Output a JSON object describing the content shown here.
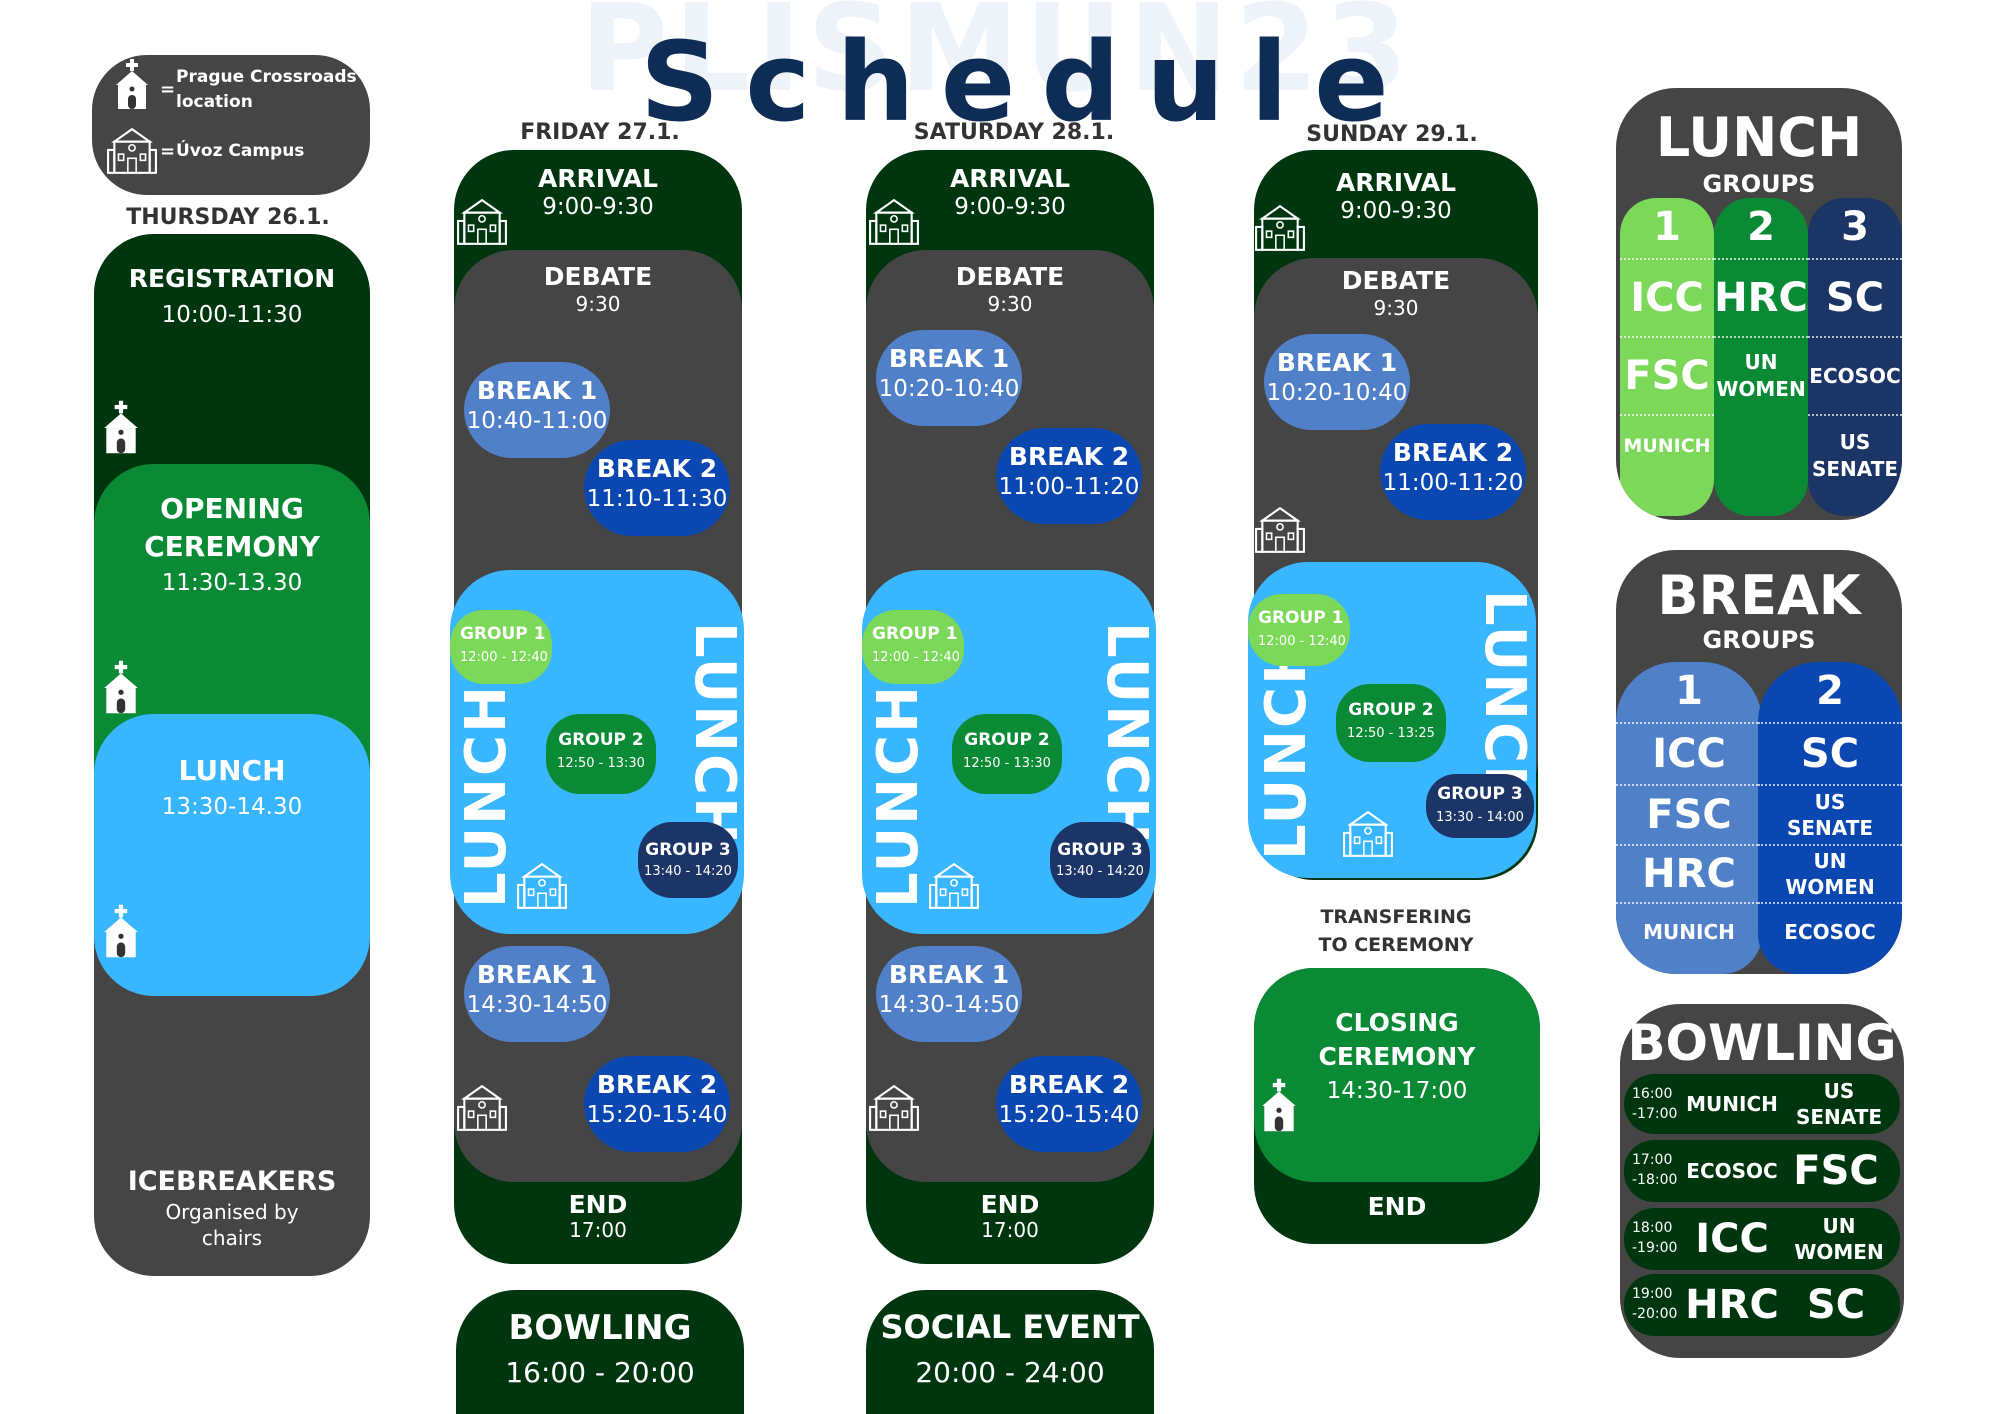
{
  "title": "Schedule",
  "watermark": "PLISMUN23",
  "colors": {
    "dark_green": "#00360f",
    "green": "#0a8a35",
    "light_green": "#7bd858",
    "gray": "#454545",
    "light_blue": "#38b6ff",
    "mid_blue": "#5080c8",
    "blue": "#0a47b0",
    "navy": "#1b3566",
    "title_navy": "#0d2d57"
  },
  "legend": {
    "church_label": "Prague Crossroads location",
    "school_label": "Úvoz Campus",
    "eq": "="
  },
  "thursday": {
    "day": "THURSDAY 26.1.",
    "registration": "REGISTRATION",
    "registration_time": "10:00-11:30",
    "opening_1": "OPENING",
    "opening_2": "CEREMONY",
    "opening_time": "11:30-13.30",
    "lunch": "LUNCH",
    "lunch_time": "13:30-14.30",
    "icebreakers": "ICEBREAKERS",
    "ice_sub_1": "Organised by",
    "ice_sub_2": "chairs"
  },
  "friday": {
    "day": "FRIDAY 27.1.",
    "arrival": "ARRIVAL",
    "arrival_time": "9:00-9:30",
    "debate": "DEBATE",
    "debate_time": "9:30",
    "break1": "BREAK 1",
    "break1_time": "10:40-11:00",
    "break2": "BREAK 2",
    "break2_time": "11:10-11:30",
    "lunch": "LUNCH",
    "g1": "GROUP 1",
    "g1_time": "12:00 - 12:40",
    "g2": "GROUP 2",
    "g2_time": "12:50 - 13:30",
    "g3": "GROUP 3",
    "g3_time": "13:40 - 14:20",
    "break1b": "BREAK 1",
    "break1b_time": "14:30-14:50",
    "break2b": "BREAK 2",
    "break2b_time": "15:20-15:40",
    "end": "END",
    "end_time": "17:00",
    "evening": "BOWLING",
    "evening_time": "16:00 - 20:00"
  },
  "saturday": {
    "day": "SATURDAY 28.1.",
    "arrival": "ARRIVAL",
    "arrival_time": "9:00-9:30",
    "debate": "DEBATE",
    "debate_time": "9:30",
    "break1": "BREAK 1",
    "break1_time": "10:20-10:40",
    "break2": "BREAK 2",
    "break2_time": "11:00-11:20",
    "lunch": "LUNCH",
    "g1": "GROUP 1",
    "g1_time": "12:00 - 12:40",
    "g2": "GROUP 2",
    "g2_time": "12:50 - 13:30",
    "g3": "GROUP 3",
    "g3_time": "13:40 - 14:20",
    "break1b": "BREAK 1",
    "break1b_time": "14:30-14:50",
    "break2b": "BREAK 2",
    "break2b_time": "15:20-15:40",
    "end": "END",
    "end_time": "17:00",
    "evening": "SOCIAL EVENT",
    "evening_time": "20:00 - 24:00"
  },
  "sunday": {
    "day": "SUNDAY 29.1.",
    "arrival": "ARRIVAL",
    "arrival_time": "9:00-9:30",
    "debate": "DEBATE",
    "debate_time": "9:30",
    "break1": "BREAK 1",
    "break1_time": "10:20-10:40",
    "break2": "BREAK 2",
    "break2_time": "11:00-11:20",
    "lunch": "LUNCH",
    "g1": "GROUP 1",
    "g1_time": "12:00 - 12:40",
    "g2": "GROUP 2",
    "g2_time": "12:50 - 13:25",
    "g3": "GROUP 3",
    "g3_time": "13:30 - 14:00",
    "transfer_1": "TRANSFERING",
    "transfer_2": "TO CEREMONY",
    "closing_1": "CLOSING",
    "closing_2": "CEREMONY",
    "closing_time": "14:30-17:00",
    "end": "END"
  },
  "lunch_groups": {
    "title": "LUNCH",
    "sub": "GROUPS",
    "cols": [
      {
        "num": "1",
        "items": [
          "ICC",
          "FSC",
          "MUNICH"
        ]
      },
      {
        "num": "2",
        "items": [
          "HRC",
          "UN WOMEN"
        ]
      },
      {
        "num": "3",
        "items": [
          "SC",
          "ECOSOC",
          "US SENATE"
        ]
      }
    ]
  },
  "break_groups": {
    "title": "BREAK",
    "sub": "GROUPS",
    "cols": [
      {
        "num": "1",
        "items": [
          "ICC",
          "FSC",
          "HRC",
          "MUNICH"
        ]
      },
      {
        "num": "2",
        "items": [
          "SC",
          "US SENATE",
          "UN WOMEN",
          "ECOSOC"
        ]
      }
    ]
  },
  "bowling": {
    "title": "BOWLING",
    "rows": [
      {
        "time_1": "16:00",
        "time_2": "-17:00",
        "a": "MUNICH",
        "b": "US SENATE"
      },
      {
        "time_1": "17:00",
        "time_2": "-18:00",
        "a": "ECOSOC",
        "b": "FSC"
      },
      {
        "time_1": "18:00",
        "time_2": "-19:00",
        "a": "ICC",
        "b": "UN WOMEN"
      },
      {
        "time_1": "19:00",
        "time_2": "-20:00",
        "a": "HRC",
        "b": "SC"
      }
    ]
  }
}
